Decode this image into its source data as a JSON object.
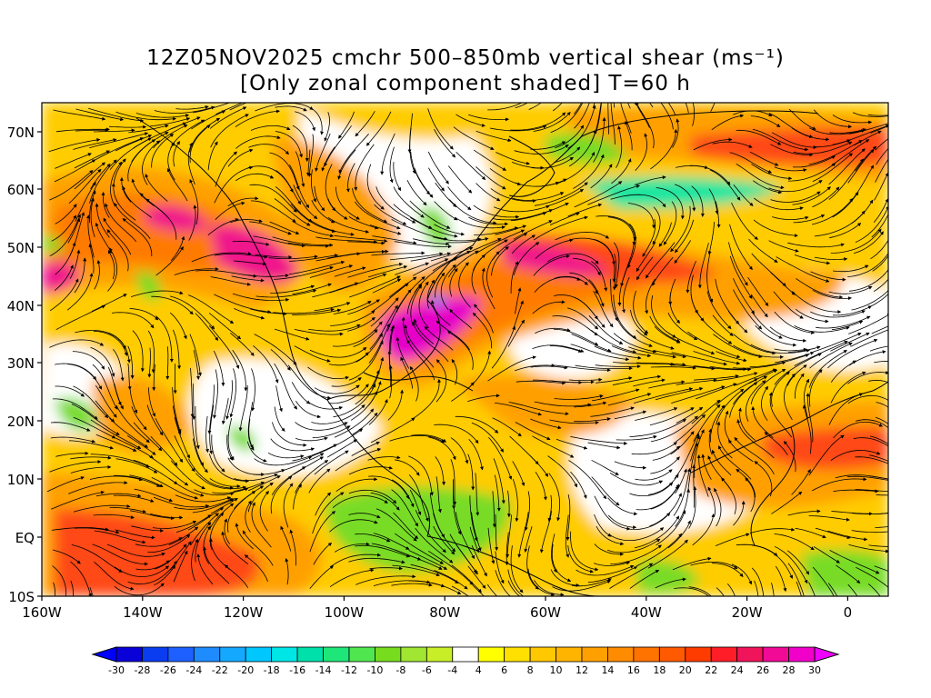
{
  "title": {
    "line1": "12Z05NOV2025 cmchr 500–850mb vertical shear (ms⁻¹)",
    "line2": "[Only zonal component shaded] T=60 h"
  },
  "map": {
    "lat_labels": [
      "70N",
      "60N",
      "50N",
      "40N",
      "30N",
      "20N",
      "10N",
      "EQ",
      "10S"
    ],
    "lon_labels": [
      "160W",
      "140W",
      "120W",
      "100W",
      "80W",
      "60W",
      "40W",
      "20W",
      "0"
    ]
  },
  "colorbar": {
    "labels": [
      "-30",
      "-28",
      "-26",
      "-24",
      "-22",
      "-20",
      "-18",
      "-16",
      "-14",
      "-12",
      "-10",
      "-8",
      "-6",
      "-4",
      "4",
      "6",
      "8",
      "10",
      "12",
      "14",
      "16",
      "18",
      "20",
      "22",
      "24",
      "26",
      "28",
      "30"
    ],
    "colors": [
      "#0a00d8",
      "#0a3cf0",
      "#1e60ff",
      "#1e8cff",
      "#14a8ff",
      "#00c8ff",
      "#00e6e6",
      "#00e0aa",
      "#1ee678",
      "#50e650",
      "#78dc1e",
      "#a0e632",
      "#c8ee28",
      "#ffffff",
      "#ffff00",
      "#ffe000",
      "#ffc800",
      "#ffb400",
      "#ffa000",
      "#ff8c00",
      "#ff7300",
      "#ff5a00",
      "#ff3c00",
      "#ff1e28",
      "#f0145a",
      "#f00a96",
      "#f000c8"
    ],
    "under_color": "#0000ff",
    "over_color": "#f000ff"
  },
  "colors": {
    "white": "#ffffff",
    "yellow": "#ffe600",
    "gold": "#ffcc00",
    "orange": "#ffa000",
    "dark_orange": "#ff7a00",
    "red_orange": "#ff4a14",
    "magenta": "#f0148c",
    "pink": "#e600c8",
    "green": "#78dc28",
    "cyan_green": "#1ee6a0",
    "blue": "#1e8cff"
  }
}
